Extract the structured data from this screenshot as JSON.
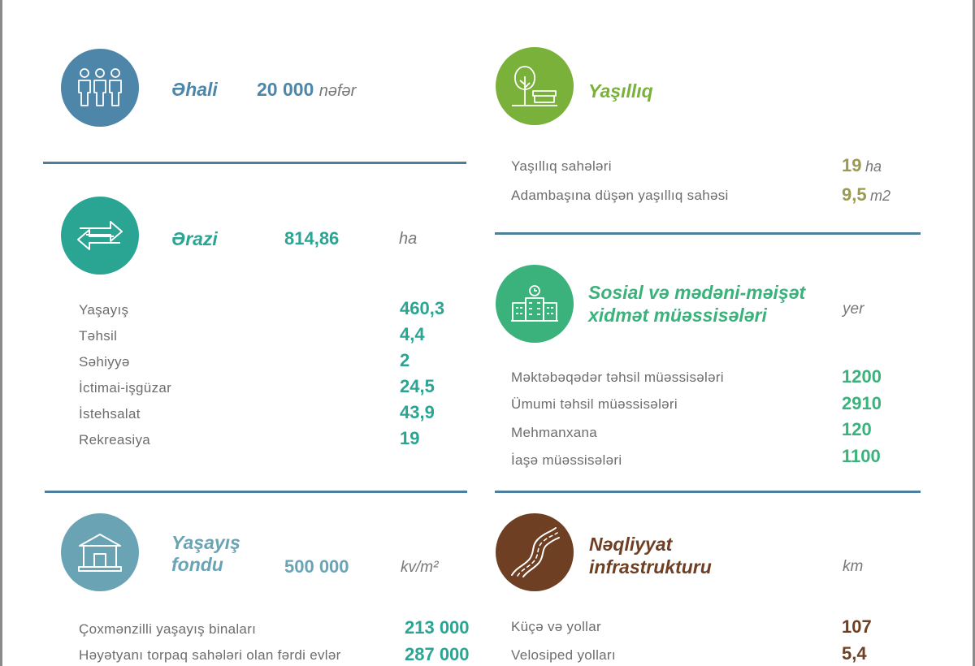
{
  "colors": {
    "blue": "#4d86a8",
    "teal": "#2aa594",
    "lightblue": "#6aa4b4",
    "green": "#7ab13a",
    "mint": "#3bb27b",
    "brown": "#6e3f22",
    "olive": "#9a9a55",
    "rule": "#4d7e9e"
  },
  "population": {
    "icon": "people-icon",
    "title": "Əhali",
    "value": "20 000",
    "unit": "nəfər"
  },
  "area": {
    "icon": "arrows-exchange-icon",
    "title": "Ərazi",
    "value": "814,86",
    "unit": "ha",
    "rows": [
      {
        "label": "Yaşayış",
        "value": "460,3"
      },
      {
        "label": "Təhsil",
        "value": "4,4"
      },
      {
        "label": "Səhiyyə",
        "value": "2"
      },
      {
        "label": "İctimai-işgüzar",
        "value": "24,5"
      },
      {
        "label": "İstehsalat",
        "value": "43,9"
      },
      {
        "label": "Rekreasiya",
        "value": "19"
      }
    ]
  },
  "housing": {
    "icon": "house-icon",
    "title_line1": "Yaşayış",
    "title_line2": "fondu",
    "value": "500 000",
    "unit": "kv/m²",
    "rows": [
      {
        "label": "Çoxmənzilli yaşayış binaları",
        "value": "213 000"
      },
      {
        "label": "Həyətyanı torpaq sahələri olan fərdi evlər",
        "value": "287 000"
      }
    ]
  },
  "green": {
    "icon": "tree-bench-icon",
    "title": "Yaşıllıq",
    "rows": [
      {
        "label": "Yaşıllıq sahələri",
        "value": "19",
        "unit": "ha"
      },
      {
        "label": "Adambaşına düşən yaşıllıq sahəsi",
        "value": "9,5",
        "unit": "m2"
      }
    ]
  },
  "social": {
    "icon": "building-clock-icon",
    "title_line1": "Sosial və mədəni-məişət",
    "title_line2": "xidmət müəssisələri",
    "unit": "yer",
    "rows": [
      {
        "label": "Məktəbəqədər təhsil müəssisələri",
        "value": "1200"
      },
      {
        "label": "Ümumi təhsil müəssisələri",
        "value": "2910"
      },
      {
        "label": "Mehmanxana",
        "value": "120"
      },
      {
        "label": "İaşə müəssisələri",
        "value": "1100"
      }
    ]
  },
  "transport": {
    "icon": "road-icon",
    "title_line1": "Nəqliyyat",
    "title_line2": "infrastrukturu",
    "unit": "km",
    "rows": [
      {
        "label": "Küçə və yollar",
        "value": "107"
      },
      {
        "label": "Velosiped yolları",
        "value": "5,4"
      }
    ]
  }
}
